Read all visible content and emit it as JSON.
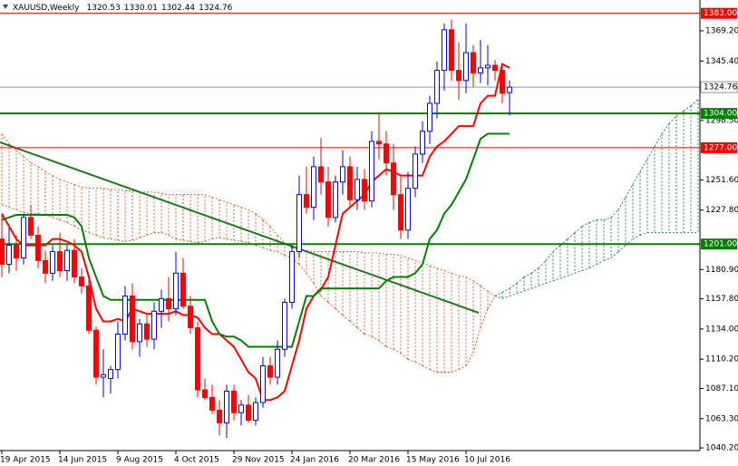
{
  "chart_data": {
    "type": "candlestick",
    "title": "XAUUSD,Weekly",
    "categories": [
      "19 Apr 2015",
      null,
      null,
      null,
      null,
      null,
      null,
      null,
      "14 Jun 2015",
      null,
      null,
      null,
      null,
      null,
      null,
      null,
      "9 Aug 2015",
      null,
      null,
      null,
      null,
      null,
      null,
      null,
      "4 Oct 2015",
      null,
      null,
      null,
      null,
      null,
      null,
      null,
      "29 Nov 2015",
      null,
      null,
      null,
      null,
      null,
      null,
      null,
      "24 Jan 2016",
      null,
      null,
      null,
      null,
      null,
      null,
      null,
      "20 Mar 2016",
      null,
      null,
      null,
      null,
      null,
      null,
      null,
      "15 May 2016",
      null,
      null,
      null,
      null,
      null,
      null,
      null,
      "10 Jul 2016",
      null,
      null,
      null,
      null,
      null,
      null,
      null,
      null,
      null,
      null,
      null,
      null,
      null,
      null,
      null,
      null,
      null,
      null,
      null,
      null,
      null,
      null,
      null,
      null,
      null,
      null,
      null,
      null,
      null,
      null,
      null
    ],
    "open": [
      1205,
      1185,
      1200,
      1190,
      1222,
      1208,
      1188,
      1178,
      1195,
      1180,
      1196,
      1175,
      1168,
      1133,
      1096,
      1095,
      1102,
      1130,
      1160,
      1124,
      1138,
      1126,
      1148,
      1158,
      1150,
      1178,
      1152,
      1135,
      1086,
      1080,
      1070,
      1060,
      1085,
      1068,
      1074,
      1062,
      1076,
      1105,
      1096,
      1118,
      1155,
      1195,
      1240,
      1230,
      1262,
      1250,
      1222,
      1250,
      1262,
      1236,
      1252,
      1235,
      1282,
      1280,
      1265,
      1240,
      1212,
      1245,
      1272,
      1290,
      1312,
      1338,
      1370,
      1338,
      1330,
      1352,
      1336,
      1340,
      1342,
      1338,
      1320.53,
      null,
      null,
      null,
      null,
      null,
      null,
      null,
      null,
      null,
      null,
      null,
      null,
      null,
      null,
      null,
      null,
      null,
      null,
      null,
      null,
      null,
      null,
      null,
      null,
      null
    ],
    "high": [
      1224,
      1214,
      1208,
      1225,
      1232,
      1215,
      1196,
      1200,
      1210,
      1200,
      1205,
      1182,
      1175,
      1136,
      1118,
      1105,
      1140,
      1168,
      1170,
      1142,
      1146,
      1155,
      1165,
      1175,
      1195,
      1190,
      1160,
      1140,
      1095,
      1090,
      1078,
      1090,
      1090,
      1078,
      1082,
      1080,
      1112,
      1112,
      1125,
      1158,
      1200,
      1255,
      1262,
      1270,
      1285,
      1262,
      1255,
      1275,
      1270,
      1262,
      1260,
      1290,
      1305,
      1290,
      1280,
      1256,
      1258,
      1278,
      1298,
      1318,
      1345,
      1375,
      1378,
      1360,
      1375,
      1358,
      1362,
      1358,
      1346,
      1342,
      1330.01,
      null,
      null,
      null,
      null,
      null,
      null,
      null,
      null,
      null,
      null,
      null,
      null,
      null,
      null,
      null,
      null,
      null,
      null,
      null,
      null,
      null,
      null,
      null,
      null,
      null
    ],
    "low": [
      1175,
      1178,
      1180,
      1185,
      1205,
      1182,
      1170,
      1172,
      1175,
      1172,
      1170,
      1162,
      1130,
      1090,
      1080,
      1083,
      1095,
      1125,
      1118,
      1112,
      1120,
      1118,
      1135,
      1140,
      1145,
      1150,
      1130,
      1080,
      1078,
      1067,
      1050,
      1048,
      1062,
      1058,
      1060,
      1058,
      1072,
      1090,
      1090,
      1112,
      1150,
      1190,
      1225,
      1220,
      1240,
      1215,
      1218,
      1240,
      1230,
      1228,
      1228,
      1230,
      1268,
      1255,
      1228,
      1205,
      1205,
      1238,
      1265,
      1280,
      1300,
      1322,
      1330,
      1315,
      1320,
      1325,
      1328,
      1326,
      1330,
      1312,
      1302.44,
      null,
      null,
      null,
      null,
      null,
      null,
      null,
      null,
      null,
      null,
      null,
      null,
      null,
      null,
      null,
      null,
      null,
      null,
      null,
      null,
      null,
      null,
      null,
      null,
      null
    ],
    "close": [
      1185,
      1200,
      1190,
      1222,
      1208,
      1188,
      1178,
      1195,
      1180,
      1196,
      1175,
      1168,
      1133,
      1096,
      1098,
      1102,
      1130,
      1160,
      1124,
      1138,
      1126,
      1148,
      1158,
      1150,
      1178,
      1152,
      1135,
      1086,
      1080,
      1070,
      1060,
      1085,
      1068,
      1074,
      1062,
      1076,
      1105,
      1096,
      1118,
      1155,
      1195,
      1240,
      1230,
      1262,
      1250,
      1222,
      1250,
      1262,
      1236,
      1252,
      1235,
      1282,
      1280,
      1265,
      1240,
      1212,
      1245,
      1272,
      1290,
      1312,
      1338,
      1370,
      1338,
      1330,
      1352,
      1336,
      1340,
      1342,
      1338,
      1320,
      1324.76,
      null,
      null,
      null,
      null,
      null,
      null,
      null,
      null,
      null,
      null,
      null,
      null,
      null,
      null,
      null,
      null,
      null,
      null,
      null,
      null,
      null,
      null,
      null,
      null,
      null
    ],
    "up_color": "#0000ff",
    "down_color": "#ff0000",
    "lines": [
      {
        "color": "#ff0000",
        "values": [
          1225,
          1215,
          1205,
          1200,
          1200,
          1200,
          1200,
          1205,
          1205,
          1203,
          1200,
          1195,
          1175,
          1150,
          1140,
          1140,
          1142,
          1140,
          1150,
          1148,
          1146,
          1146,
          1146,
          1146,
          1148,
          1145,
          1145,
          1143,
          1135,
          1130,
          1130,
          1125,
          1120,
          1110,
          1100,
          1095,
          1078,
          1078,
          1080,
          1085,
          1105,
          1125,
          1150,
          1160,
          1165,
          1175,
          1200,
          1225,
          1230,
          1235,
          1240,
          1250,
          1255,
          1260,
          1258,
          1255,
          1255,
          1255,
          1255,
          1270,
          1278,
          1282,
          1288,
          1294,
          1294,
          1294,
          1312,
          1318,
          1318,
          1343,
          1340,
          null,
          null,
          null,
          null,
          null,
          null,
          null,
          null,
          null,
          null,
          null,
          null,
          null,
          null,
          null,
          null,
          null,
          null,
          null,
          null,
          null,
          null,
          null,
          null,
          null
        ]
      },
      {
        "color": "#008000",
        "values": [
          1220,
          1222,
          1224,
          1224,
          1224,
          1224,
          1224,
          1224,
          1224,
          1224,
          1222,
          1215,
          1190,
          1175,
          1160,
          1157,
          1157,
          1157,
          1157,
          1157,
          1157,
          1157,
          1157,
          1157,
          1157,
          1157,
          1157,
          1157,
          1157,
          1140,
          1130,
          1128,
          1128,
          1125,
          1120,
          1120,
          1120,
          1120,
          1120,
          1120,
          1120,
          1140,
          1160,
          1160,
          1166,
          1166,
          1166,
          1166,
          1166,
          1166,
          1166,
          1166,
          1166,
          1172,
          1175,
          1175,
          1175,
          1178,
          1185,
          1205,
          1212,
          1225,
          1232,
          1242,
          1252,
          1268,
          1284,
          1288,
          1288,
          1288,
          1288,
          null,
          null,
          null,
          null,
          null,
          null,
          null,
          null,
          null,
          null,
          null,
          null,
          null,
          null,
          null,
          null,
          null,
          null,
          null,
          null,
          null,
          null,
          null,
          null,
          null
        ]
      }
    ],
    "cloud": {
      "bull_color": "#2e8b57",
      "bear_color": "#e0642a",
      "span_a": [
        1232,
        1230,
        1228,
        1226,
        1225,
        1225,
        1224,
        1222,
        1220,
        1218,
        1215,
        1212,
        1210,
        1208,
        1206,
        1205,
        1204,
        1203,
        1204,
        1206,
        1208,
        1210,
        1210,
        1208,
        1205,
        1204,
        1203,
        1202,
        1203,
        1205,
        1206,
        1205,
        1204,
        1203,
        1202,
        1200,
        1198,
        1196,
        1195,
        1192,
        1190,
        1185,
        1178,
        1170,
        1160,
        1155,
        1150,
        1145,
        1140,
        1135,
        1130,
        1128,
        1125,
        1120,
        1118,
        1115,
        1110,
        1108,
        1105,
        1102,
        1100,
        1100,
        1100,
        1102,
        1105,
        1115,
        1135,
        1150,
        1160,
        1163,
        1166,
        1170,
        1175,
        1178,
        1182,
        1188,
        1195,
        1200,
        1205,
        1210,
        1215,
        1218,
        1220,
        1220,
        1222,
        1228,
        1238,
        1248,
        1258,
        1268,
        1278,
        1288,
        1296,
        1302,
        1306,
        1310,
        1315
      ],
      "span_b": [
        1288,
        1280,
        1275,
        1270,
        1265,
        1262,
        1258,
        1255,
        1252,
        1250,
        1248,
        1246,
        1245,
        1245,
        1245,
        1244,
        1244,
        1243,
        1243,
        1242,
        1242,
        1242,
        1241,
        1240,
        1240,
        1240,
        1240,
        1240,
        1240,
        1238,
        1236,
        1234,
        1232,
        1230,
        1228,
        1225,
        1220,
        1215,
        1208,
        1202,
        1198,
        1196,
        1196,
        1195,
        1195,
        1195,
        1195,
        1195,
        1195,
        1195,
        1194,
        1194,
        1194,
        1193,
        1193,
        1192,
        1190,
        1188,
        1186,
        1184,
        1182,
        1180,
        1178,
        1176,
        1175,
        1172,
        1168,
        1164,
        1160,
        1158,
        1160,
        1162,
        1164,
        1166,
        1168,
        1170,
        1172,
        1174,
        1176,
        1178,
        1180,
        1182,
        1185,
        1188,
        1190,
        1195,
        1200,
        1205,
        1208,
        1210,
        1210,
        1210,
        1210,
        1210,
        1210,
        1210,
        1210
      ]
    },
    "hlines": [
      {
        "value": 1383,
        "label": "1383.00",
        "color": "#ff0000"
      },
      {
        "value": 1304,
        "label": "1304.00",
        "color": "#008000"
      },
      {
        "value": 1277,
        "label": "1277.00",
        "color": "#ff0000"
      },
      {
        "value": 1201,
        "label": "1201.00",
        "color": "#008000"
      }
    ],
    "price_line_color": "#8899aa",
    "ylim": [
      1038.1,
      1393.5
    ],
    "yticks": [
      {
        "value": 1369.2,
        "label": "1369.20"
      },
      {
        "value": 1345.4,
        "label": "1345.40"
      },
      {
        "value": 1298.5,
        "label": "1298.50"
      },
      {
        "value": 1251.6,
        "label": "1251.60"
      },
      {
        "value": 1227.8,
        "label": "1227.80"
      },
      {
        "value": 1180.9,
        "label": "1180.90"
      },
      {
        "value": 1157.8,
        "label": "1157.80"
      },
      {
        "value": 1134,
        "label": "1134.00"
      },
      {
        "value": 1110.2,
        "label": "1110.20"
      },
      {
        "value": 1087.1,
        "label": "1087.10"
      },
      {
        "value": 1063.3,
        "label": "1063.30"
      },
      {
        "value": 1040.2,
        "label": "1040.20"
      }
    ]
  }
}
